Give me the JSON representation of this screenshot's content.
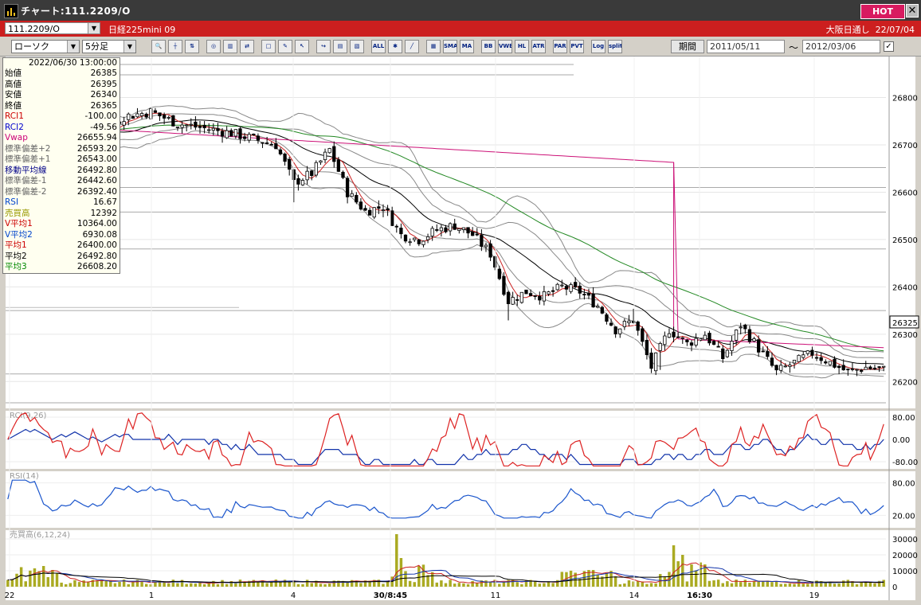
{
  "window": {
    "title": "チャート:111.2209/O",
    "hot_label": "HOT",
    "close_label": "✕"
  },
  "symbol_bar": {
    "symbol": "111.2209/O",
    "name": "日経225mini 09",
    "session": "大阪日通し",
    "date": "22/07/04"
  },
  "toolbar": {
    "chart_type": "ローソク",
    "interval": "5分足",
    "buttons": [
      "zoom",
      "cursor",
      "order",
      "target",
      "chart-a",
      "chart-b",
      "blank",
      "pen",
      "arrow",
      "hand",
      "chart-c",
      "chart-d",
      "ALL",
      "gear",
      "brush",
      "palette",
      "SMA",
      "MA",
      "BB",
      "VWE",
      "HL",
      "ATR",
      "PAR",
      "PVT",
      "Log",
      "split"
    ],
    "period_label": "期間",
    "from_date": "2011/05/11",
    "tilde": "〜",
    "to_date": "2012/03/06"
  },
  "info_panel": {
    "datetime": "2022/06/30  13:00:00",
    "rows": [
      {
        "label": "始値",
        "value": "26385",
        "color": "#000000"
      },
      {
        "label": "高値",
        "value": "26395",
        "color": "#000000"
      },
      {
        "label": "安値",
        "value": "26340",
        "color": "#000000"
      },
      {
        "label": "終値",
        "value": "26365",
        "color": "#000000"
      },
      {
        "label": "RCI1",
        "value": "-100.00",
        "color": "#cc0000"
      },
      {
        "label": "RCI2",
        "value": "-49.56",
        "color": "#0000cc"
      },
      {
        "label": "Vwap",
        "value": "26655.94",
        "color": "#cc0077"
      },
      {
        "label": "標準偏差+2",
        "value": "26593.20",
        "color": "#666666"
      },
      {
        "label": "標準偏差+1",
        "value": "26543.00",
        "color": "#666666"
      },
      {
        "label": "移動平均線",
        "value": "26492.80",
        "color": "#000088"
      },
      {
        "label": "標準偏差-1",
        "value": "26442.60",
        "color": "#666666"
      },
      {
        "label": "標準偏差-2",
        "value": "26392.40",
        "color": "#666666"
      },
      {
        "label": "RSI",
        "value": "16.67",
        "color": "#0044cc"
      },
      {
        "label": "売買高",
        "value": "12392",
        "color": "#999900"
      },
      {
        "label": "V平均1",
        "value": "10364.00",
        "color": "#cc0000"
      },
      {
        "label": "V平均2",
        "value": "6930.08",
        "color": "#0044cc"
      },
      {
        "label": "平均1",
        "value": "26400.00",
        "color": "#cc0000"
      },
      {
        "label": "平均2",
        "value": "26492.80",
        "color": "#000000"
      },
      {
        "label": "平均3",
        "value": "26608.20",
        "color": "#008800"
      }
    ]
  },
  "chart_data": {
    "type": "candlestick",
    "price_axis": {
      "ticks": [
        "26800",
        "26700",
        "26600",
        "26500",
        "26400",
        "26300",
        "26200"
      ],
      "range": [
        26150,
        26880
      ],
      "current_price": "26325"
    },
    "rci_panel": {
      "label": "RCI(9,26)",
      "ticks": [
        "80.00",
        "0.00",
        "-80.00"
      ],
      "range": [
        -100,
        100
      ]
    },
    "rsi_panel": {
      "label": "RSI(14)",
      "ticks": [
        "80.00",
        "20.00"
      ],
      "range": [
        0,
        100
      ]
    },
    "volume_panel": {
      "label": "売買高(6,12,24)",
      "ticks": [
        "30000",
        "20000",
        "10000",
        "0"
      ],
      "range": [
        0,
        35000
      ]
    },
    "time_labels": [
      {
        "label": "22",
        "bold": false
      },
      {
        "label": "1",
        "bold": false
      },
      {
        "label": "4",
        "bold": false
      },
      {
        "label": "30/8:45",
        "bold": true
      },
      {
        "label": "11",
        "bold": false
      },
      {
        "label": "14",
        "bold": false
      },
      {
        "label": "16:30",
        "bold": true
      },
      {
        "label": "19",
        "bold": false
      }
    ],
    "close_anchors": [
      [
        0,
        26740
      ],
      [
        6,
        26770
      ],
      [
        10,
        26700
      ],
      [
        16,
        26735
      ],
      [
        20,
        26720
      ],
      [
        26,
        26760
      ],
      [
        32,
        26770
      ],
      [
        38,
        26745
      ],
      [
        44,
        26735
      ],
      [
        50,
        26725
      ],
      [
        56,
        26710
      ],
      [
        60,
        26700
      ],
      [
        64,
        26620
      ],
      [
        68,
        26640
      ],
      [
        72,
        26690
      ],
      [
        76,
        26600
      ],
      [
        80,
        26560
      ],
      [
        84,
        26570
      ],
      [
        88,
        26510
      ],
      [
        92,
        26500
      ],
      [
        96,
        26520
      ],
      [
        100,
        26530
      ],
      [
        104,
        26510
      ],
      [
        108,
        26470
      ],
      [
        112,
        26370
      ],
      [
        116,
        26390
      ],
      [
        120,
        26380
      ],
      [
        124,
        26400
      ],
      [
        128,
        26390
      ],
      [
        132,
        26360
      ],
      [
        136,
        26310
      ],
      [
        140,
        26330
      ],
      [
        144,
        26230
      ],
      [
        148,
        26310
      ],
      [
        152,
        26280
      ],
      [
        156,
        26300
      ],
      [
        160,
        26250
      ],
      [
        164,
        26320
      ],
      [
        168,
        26270
      ],
      [
        172,
        26220
      ],
      [
        176,
        26240
      ],
      [
        180,
        26260
      ],
      [
        184,
        26240
      ],
      [
        188,
        26220
      ],
      [
        192,
        26230
      ],
      [
        196,
        26225
      ]
    ],
    "colors": {
      "rci_short": "#dd2222",
      "rci_long": "#1133aa",
      "rsi": "#1a55cc",
      "volume": "#aaaa22",
      "vwap": "#cc1177",
      "ma_short": "#cc2222",
      "ma_mid": "#000000",
      "ma_long": "#228822",
      "band": "#888888"
    }
  }
}
